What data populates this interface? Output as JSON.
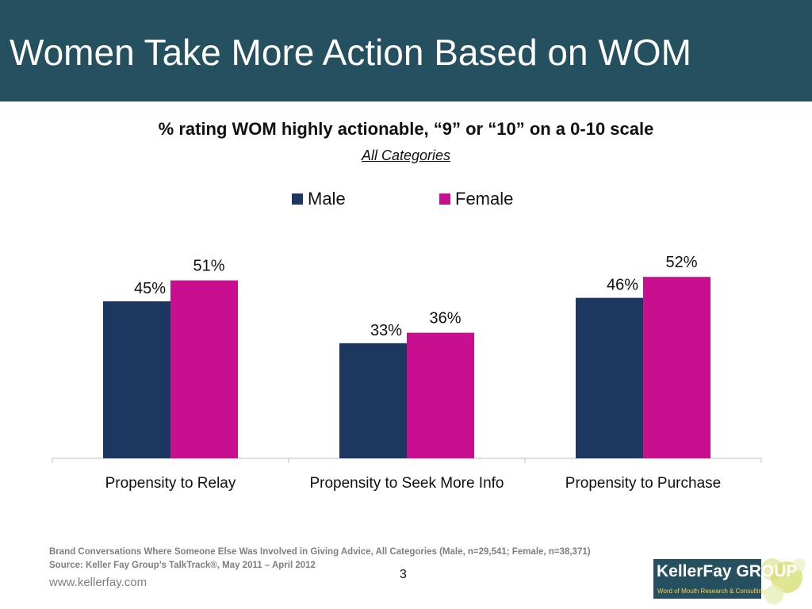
{
  "slide": {
    "title": "Women Take More Action Based on WOM",
    "page_number": "3",
    "website": "www.kellerfay.com",
    "footnotes": [
      "Brand Conversations Where Someone Else Was Involved in Giving Advice, All Categories (Male, n=29,541; Female, n=38,371)",
      "Source: Keller Fay Group’s TalkTrack®,  May 2011 – April 2012"
    ],
    "logo": {
      "main": "KellerFay GROUP",
      "sub": "Word of Mouth Research & Consulting"
    }
  },
  "colors": {
    "title_bar": "#24505f",
    "male": "#1c3861",
    "female": "#c80f8f"
  },
  "chart_data": {
    "type": "bar",
    "title": "% rating WOM highly actionable, “9” or “10” on a 0-10 scale",
    "subtitle": "All Categories",
    "categories": [
      "Propensity to Relay",
      "Propensity to Seek More Info",
      "Propensity to Purchase"
    ],
    "series": [
      {
        "name": "Male",
        "values": [
          45,
          33,
          46
        ],
        "labels": [
          "45%",
          "33%",
          "46%"
        ]
      },
      {
        "name": "Female",
        "values": [
          51,
          36,
          52
        ],
        "labels": [
          "51%",
          "36%",
          "52%"
        ]
      }
    ],
    "ylim": [
      0,
      60
    ],
    "xlabel": "",
    "ylabel": "",
    "legend": "top-center",
    "grid": false
  }
}
